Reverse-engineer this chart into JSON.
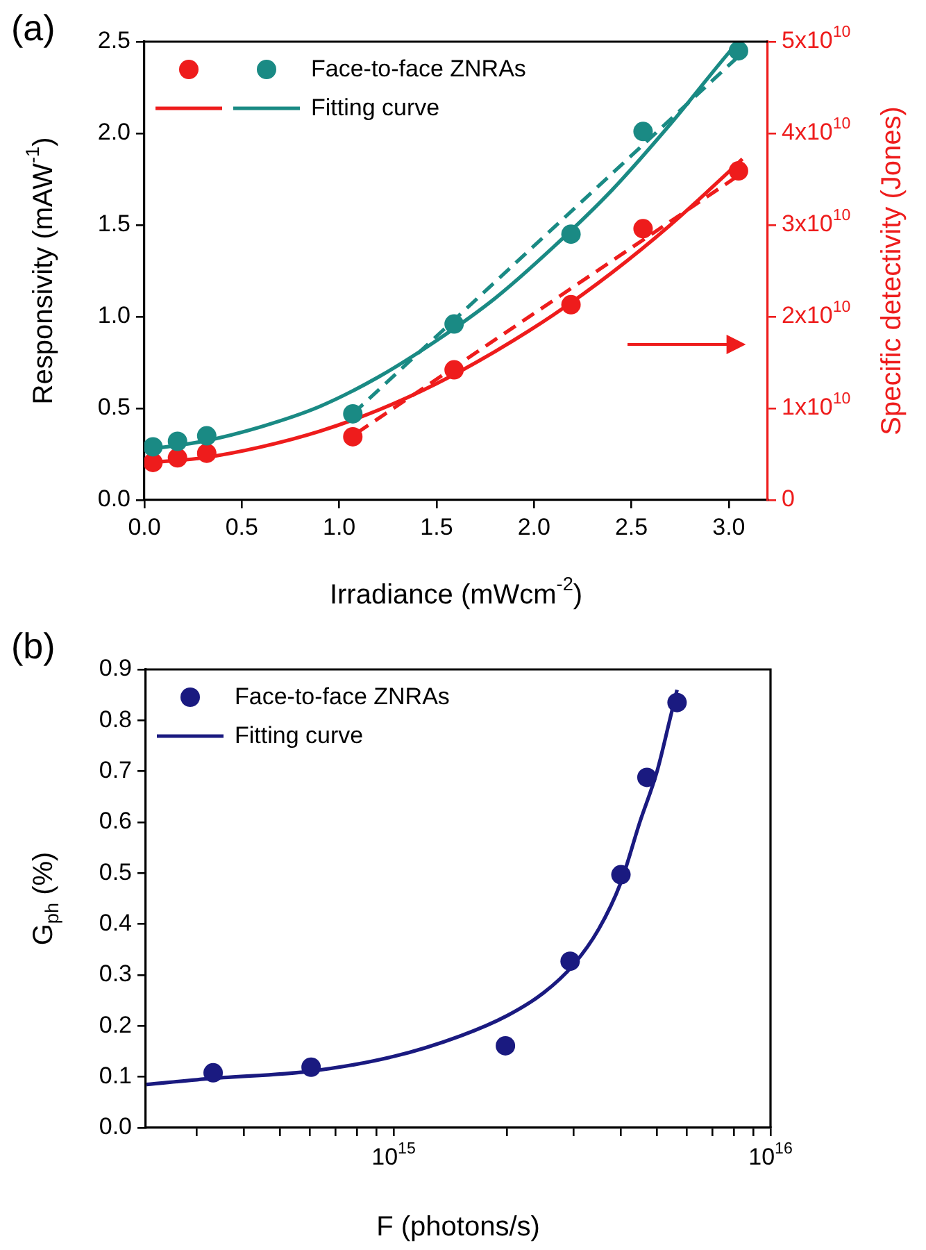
{
  "chart_data": [
    {
      "type": "scatter",
      "annotations": [
        "(a)"
      ],
      "xlabel": "Irradiance (mWcm$^{-2}$)",
      "ylabel": "Responsivity (mAW$^{-1}$)",
      "y2label": "Specific detectivity (Jones)",
      "legend": "top left",
      "xlim": [
        0,
        3.2
      ],
      "xticks": [
        {
          "value": 0,
          "label": "0.0"
        },
        0.5,
        {
          "value": 1,
          "label": "1.0"
        },
        1.5,
        {
          "value": 2,
          "label": "2.0"
        },
        2.5,
        {
          "value": 3,
          "label": "3.0"
        }
      ],
      "ylim": [
        0,
        2.5
      ],
      "yticks": [
        {
          "value": 0,
          "label": "0.0"
        },
        0.5,
        {
          "value": 1,
          "label": "1.0"
        },
        1.5,
        {
          "value": 2,
          "label": "2.0"
        },
        2.5
      ],
      "y2lim": [
        0,
        50000000000.0
      ],
      "y2ticks": [
        0,
        {
          "value": 10000000000.0,
          "label": "1x10$^{10}$"
        },
        {
          "value": 20000000000.0,
          "label": "2x10$^{10}$"
        },
        {
          "value": 30000000000.0,
          "label": "3x10$^{10}$"
        },
        {
          "value": 40000000000.0,
          "label": "4x10$^{10}$"
        },
        {
          "value": 50000000000.0,
          "label": "5x10$^{10}$"
        }
      ],
      "series": [
        {
          "name": "Face-to-face ZNRAs",
          "type": "scatter",
          "marker": "circle",
          "color": "#1a8a84",
          "x": [
            0.044,
            0.17,
            0.32,
            1.07,
            1.59,
            2.19,
            2.56,
            3.05
          ],
          "values": [
            0.29,
            0.32,
            0.35,
            0.47,
            0.96,
            1.45,
            2.01,
            2.45
          ]
        },
        {
          "type": "scatter",
          "marker": "circle",
          "color": "#ee1c1c",
          "axis": "y2",
          "x": [
            0.044,
            0.17,
            0.32,
            1.07,
            1.59,
            2.19,
            2.56,
            3.05
          ],
          "values": [
            4100000000.0,
            4600000000.0,
            5100000000.0,
            6900000000.0,
            14200000000.0,
            21300000000.0,
            29600000000.0,
            35900000000.0
          ]
        },
        {
          "name": "Fitting curve",
          "type": "line",
          "color": "#1a8a84",
          "x": [
            0.044,
            0.3,
            0.6,
            0.9,
            1.2,
            1.5,
            1.8,
            2.1,
            2.4,
            2.7,
            3.0,
            3.05
          ],
          "values": [
            0.28,
            0.32,
            0.4,
            0.51,
            0.67,
            0.87,
            1.1,
            1.38,
            1.69,
            2.05,
            2.44,
            2.5
          ]
        },
        {
          "type": "line",
          "color": "#ee1c1c",
          "axis": "y2",
          "x": [
            0.044,
            0.3,
            0.6,
            0.9,
            1.2,
            1.5,
            1.8,
            2.1,
            2.4,
            2.7,
            3.0,
            3.07
          ],
          "values": [
            4100000000.0,
            4600000000.0,
            5800000000.0,
            7500000000.0,
            9800000000.0,
            12700000000.0,
            16200000000.0,
            20200000000.0,
            24800000000.0,
            30000000000.0,
            35800000000.0,
            37200000000.0
          ]
        },
        {
          "type": "line",
          "line_style": "dashed",
          "color": "#1a8a84",
          "x": [
            1.07,
            3.05
          ],
          "values": [
            0.47,
            2.42
          ]
        },
        {
          "type": "line",
          "line_style": "dashed",
          "color": "#ee1c1c",
          "axis": "y2",
          "x": [
            1.09,
            3.05
          ],
          "values": [
            7300000000.0,
            35400000000.0
          ]
        }
      ]
    },
    {
      "type": "scatter",
      "annotations": [
        "(b)"
      ],
      "xlabel": "F (photons/s)",
      "ylabel": "G$_{ph}$ (%)",
      "legend": "top left",
      "log": "x",
      "xlim": [
        220000000000000.0,
        1e+16
      ],
      "xticks": [
        {
          "value": 300000000000000.0,
          "label": null
        },
        {
          "value": 400000000000000.0,
          "label": null
        },
        {
          "value": 500000000000000.0,
          "label": null
        },
        {
          "value": 600000000000000.0,
          "label": null
        },
        {
          "value": 700000000000000.0,
          "label": null
        },
        {
          "value": 800000000000000.0,
          "label": null
        },
        {
          "value": 900000000000000.0,
          "label": null
        },
        {
          "value": 1000000000000000.0,
          "label": "10$^{15}$"
        },
        {
          "value": 2000000000000000.0,
          "label": null
        },
        {
          "value": 3000000000000000.0,
          "label": null
        },
        {
          "value": 4000000000000000.0,
          "label": null
        },
        {
          "value": 5000000000000000.0,
          "label": null
        },
        {
          "value": 6000000000000000.0,
          "label": null
        },
        {
          "value": 7000000000000000.0,
          "label": null
        },
        {
          "value": 8000000000000000.0,
          "label": null
        },
        {
          "value": 9000000000000000.0,
          "label": null
        },
        {
          "value": 1e+16,
          "label": "10$^{16}$"
        }
      ],
      "ylim": [
        0,
        0.9
      ],
      "yticks": [
        {
          "value": 0,
          "label": "0.0"
        },
        0.1,
        0.2,
        0.3,
        0.4,
        0.5,
        0.6,
        0.7,
        0.8,
        0.9
      ],
      "series": [
        {
          "name": "Face-to-face ZNRAs",
          "type": "scatter",
          "marker": "circle",
          "color": "#1a1a80",
          "x": [
            332000000000000.0,
            604000000000000.0,
            1980000000000000.0,
            2940000000000000.0,
            4010000000000000.0,
            4700000000000000.0,
            5650000000000000.0
          ],
          "values": [
            0.108,
            0.119,
            0.161,
            0.327,
            0.497,
            0.688,
            0.835
          ]
        },
        {
          "name": "Fitting curve",
          "type": "line",
          "color": "#1a1a80",
          "x": [
            221000000000000.0,
            330000000000000.0,
            600000000000000.0,
            1000000000000000.0,
            1500000000000000.0,
            2000000000000000.0,
            2500000000000000.0,
            3000000000000000.0,
            3500000000000000.0,
            4000000000000000.0,
            4500000000000000.0,
            5000000000000000.0,
            5400000000000000.0,
            5650000000000000.0
          ],
          "values": [
            0.085,
            0.097,
            0.111,
            0.14,
            0.18,
            0.22,
            0.265,
            0.32,
            0.39,
            0.48,
            0.6,
            0.7,
            0.8,
            0.86
          ]
        }
      ]
    }
  ]
}
